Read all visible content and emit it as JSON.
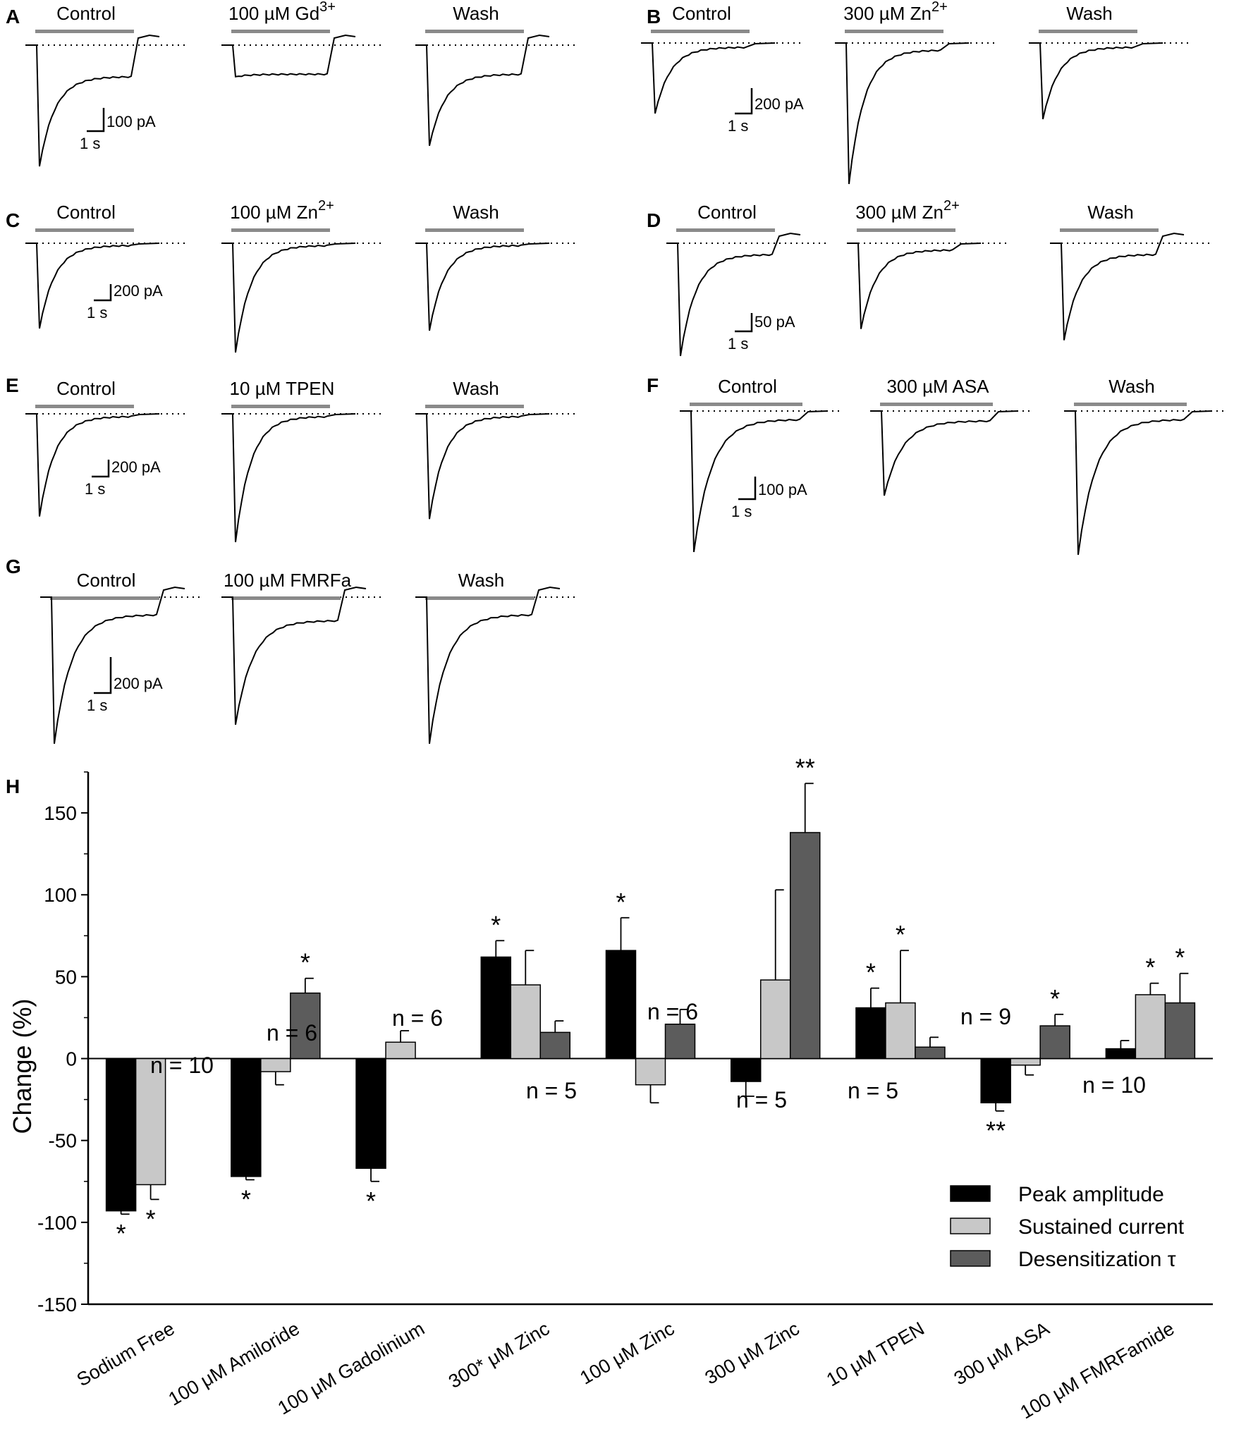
{
  "figure": {
    "panels": [
      {
        "id": "A",
        "letter": "A",
        "scale_current": "100 pA",
        "scale_time": "1 s",
        "conditions": [
          {
            "label": "Control",
            "peak": 1.0,
            "sustained": 0.26,
            "rebound": true
          },
          {
            "label": "100 µM Gd3+",
            "peak": 0.26,
            "sustained": 0.24,
            "rebound": true
          },
          {
            "label": "Wash",
            "peak": 0.83,
            "sustained": 0.24,
            "rebound": true
          }
        ]
      },
      {
        "id": "B",
        "letter": "B",
        "scale_current": "200 pA",
        "scale_time": "1 s",
        "conditions": [
          {
            "label": "Control",
            "peak": 0.5,
            "sustained": 0.03,
            "rebound": false
          },
          {
            "label": "300 µM Zn2+",
            "peak": 1.0,
            "sustained": 0.05,
            "rebound": false
          },
          {
            "label": "Wash",
            "peak": 0.54,
            "sustained": 0.03,
            "rebound": false
          }
        ]
      },
      {
        "id": "C",
        "letter": "C",
        "scale_current": "200 pA",
        "scale_time": "1 s",
        "conditions": [
          {
            "label": "Control",
            "peak": 0.78,
            "sustained": 0.02,
            "rebound": false
          },
          {
            "label": "100 µM Zn2+",
            "peak": 1.0,
            "sustained": 0.02,
            "rebound": false
          },
          {
            "label": "Wash",
            "peak": 0.8,
            "sustained": 0.02,
            "rebound": false
          }
        ]
      },
      {
        "id": "D",
        "letter": "D",
        "scale_current": "50 pA",
        "scale_time": "1 s",
        "conditions": [
          {
            "label": "Control",
            "peak": 1.0,
            "sustained": 0.1,
            "rebound": true
          },
          {
            "label": "300 µM Zn2+",
            "peak": 0.76,
            "sustained": 0.06,
            "rebound": false
          },
          {
            "label": "Wash",
            "peak": 0.86,
            "sustained": 0.1,
            "rebound": true
          }
        ]
      },
      {
        "id": "E",
        "letter": "E",
        "scale_current": "200 pA",
        "scale_time": "1 s",
        "conditions": [
          {
            "label": "Control",
            "peak": 0.8,
            "sustained": 0.02,
            "rebound": false
          },
          {
            "label": "10 µM TPEN",
            "peak": 1.0,
            "sustained": 0.02,
            "rebound": false
          },
          {
            "label": "Wash",
            "peak": 0.82,
            "sustained": 0.02,
            "rebound": false
          }
        ]
      },
      {
        "id": "F",
        "letter": "F",
        "scale_current": "100 pA",
        "scale_time": "1 s",
        "conditions": [
          {
            "label": "Control",
            "peak": 1.0,
            "sustained": 0.06,
            "rebound": false
          },
          {
            "label": "300 µM ASA",
            "peak": 0.6,
            "sustained": 0.07,
            "rebound": false
          },
          {
            "label": "Wash",
            "peak": 1.02,
            "sustained": 0.06,
            "rebound": false
          }
        ]
      },
      {
        "id": "G",
        "letter": "G",
        "scale_current": "200 pA",
        "scale_time": "1 s",
        "conditions": [
          {
            "label": "Control",
            "peak": 1.0,
            "sustained": 0.12,
            "rebound": true
          },
          {
            "label": "100 µM FMRFa",
            "peak": 0.87,
            "sustained": 0.16,
            "rebound": true
          },
          {
            "label": "Wash",
            "peak": 1.0,
            "sustained": 0.12,
            "rebound": true
          }
        ]
      }
    ]
  },
  "chart_data": {
    "type": "bar",
    "panel_letter": "H",
    "ylabel": "Change (%)",
    "ylim": [
      -150,
      175
    ],
    "yticks": [
      -150,
      -100,
      -50,
      0,
      50,
      100,
      150
    ],
    "categories": [
      "Sodium Free",
      "100 μM Amiloride",
      "100 μM Gadolinium",
      "300* μM Zinc",
      "100 μM Zinc",
      "300 μM Zinc",
      "10 μM TPEN",
      "300 μM ASA",
      "100 μM FMRFamide"
    ],
    "series": [
      {
        "name": "Peak amplitude",
        "color": "#000000",
        "values": [
          -93,
          -72,
          -67,
          62,
          66,
          -14,
          31,
          -27,
          6
        ],
        "errors": [
          2,
          2,
          8,
          10,
          20,
          9,
          12,
          5,
          5
        ],
        "marks": [
          "*",
          "*",
          "*",
          "*",
          "*",
          "",
          "*",
          "**",
          ""
        ]
      },
      {
        "name": "Sustained current",
        "color": "#c8c8c8",
        "values": [
          -77,
          -8,
          10,
          45,
          -16,
          48,
          34,
          -4,
          39
        ],
        "errors": [
          9,
          8,
          7,
          21,
          11,
          55,
          32,
          6,
          7
        ],
        "marks": [
          "*",
          "",
          "",
          "",
          "",
          "",
          "*",
          "",
          "*"
        ]
      },
      {
        "name": "Desensitization τ",
        "color": "#5c5c5c",
        "values": [
          null,
          40,
          null,
          16,
          21,
          138,
          7,
          20,
          34
        ],
        "errors": [
          0,
          9,
          0,
          7,
          9,
          30,
          6,
          7,
          18
        ],
        "marks": [
          "",
          "*",
          "",
          "",
          "",
          "**",
          "",
          "*",
          "*"
        ]
      }
    ],
    "n_labels": [
      "n = 10",
      "n = 6",
      "n = 6",
      "n = 5",
      "n = 6",
      "n = 5",
      "n = 5",
      "n = 9",
      "n = 10"
    ],
    "legend_position": "bottom-right"
  }
}
